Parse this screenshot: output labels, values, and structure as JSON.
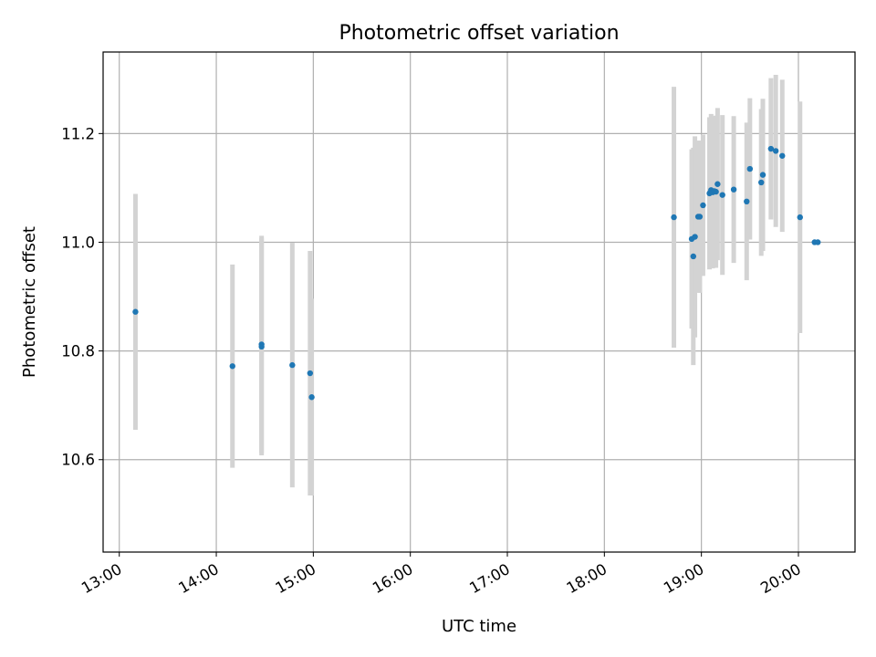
{
  "chart_data": {
    "type": "scatter",
    "title": "Photometric offset variation",
    "xlabel": "UTC time",
    "ylabel": "Photometric offset",
    "xlim": [
      "12:50",
      "20:35"
    ],
    "ylim": [
      10.43,
      11.35
    ],
    "grid": true,
    "x_ticks": [
      "13:00",
      "14:00",
      "15:00",
      "16:00",
      "17:00",
      "18:00",
      "19:00",
      "20:00"
    ],
    "y_ticks": [
      "10.6",
      "10.8",
      "11.0",
      "11.2"
    ],
    "colors": {
      "points": "#1f77b4",
      "errorbars": "#d3d3d3",
      "grid": "#b0b0b0"
    },
    "series": [
      {
        "x": [
          "13:10",
          "14:10",
          "14:28",
          "14:28",
          "14:47",
          "14:58",
          "14:59",
          "18:43",
          "18:54",
          "18:55",
          "18:56",
          "18:58",
          "18:59",
          "19:01",
          "19:05",
          "19:06",
          "19:07",
          "19:08",
          "19:09",
          "19:10",
          "19:13",
          "19:20",
          "19:28",
          "19:30",
          "19:37",
          "19:38",
          "19:43",
          "19:46",
          "19:50",
          "20:01",
          "20:10",
          "20:12"
        ],
        "y": [
          10.872,
          10.772,
          10.808,
          10.812,
          10.774,
          10.759,
          10.715,
          11.046,
          11.006,
          10.974,
          11.01,
          11.047,
          11.047,
          11.068,
          11.09,
          11.096,
          11.092,
          11.094,
          11.093,
          11.107,
          11.087,
          11.097,
          11.075,
          11.135,
          11.11,
          11.124,
          11.172,
          11.168,
          11.159,
          11.046,
          11.0,
          11.0
        ],
        "err": [
          0.217,
          0.187,
          0.2,
          0.2,
          0.225,
          0.225,
          0.181,
          0.24,
          0.165,
          0.2,
          0.185,
          0.14,
          0.14,
          0.13,
          0.14,
          0.14,
          0.14,
          0.13,
          0.14,
          0.14,
          0.147,
          0.135,
          0.145,
          0.13,
          0.135,
          0.14,
          0.13,
          0.14,
          0.14,
          0.213,
          0.0,
          0.0
        ]
      }
    ]
  }
}
